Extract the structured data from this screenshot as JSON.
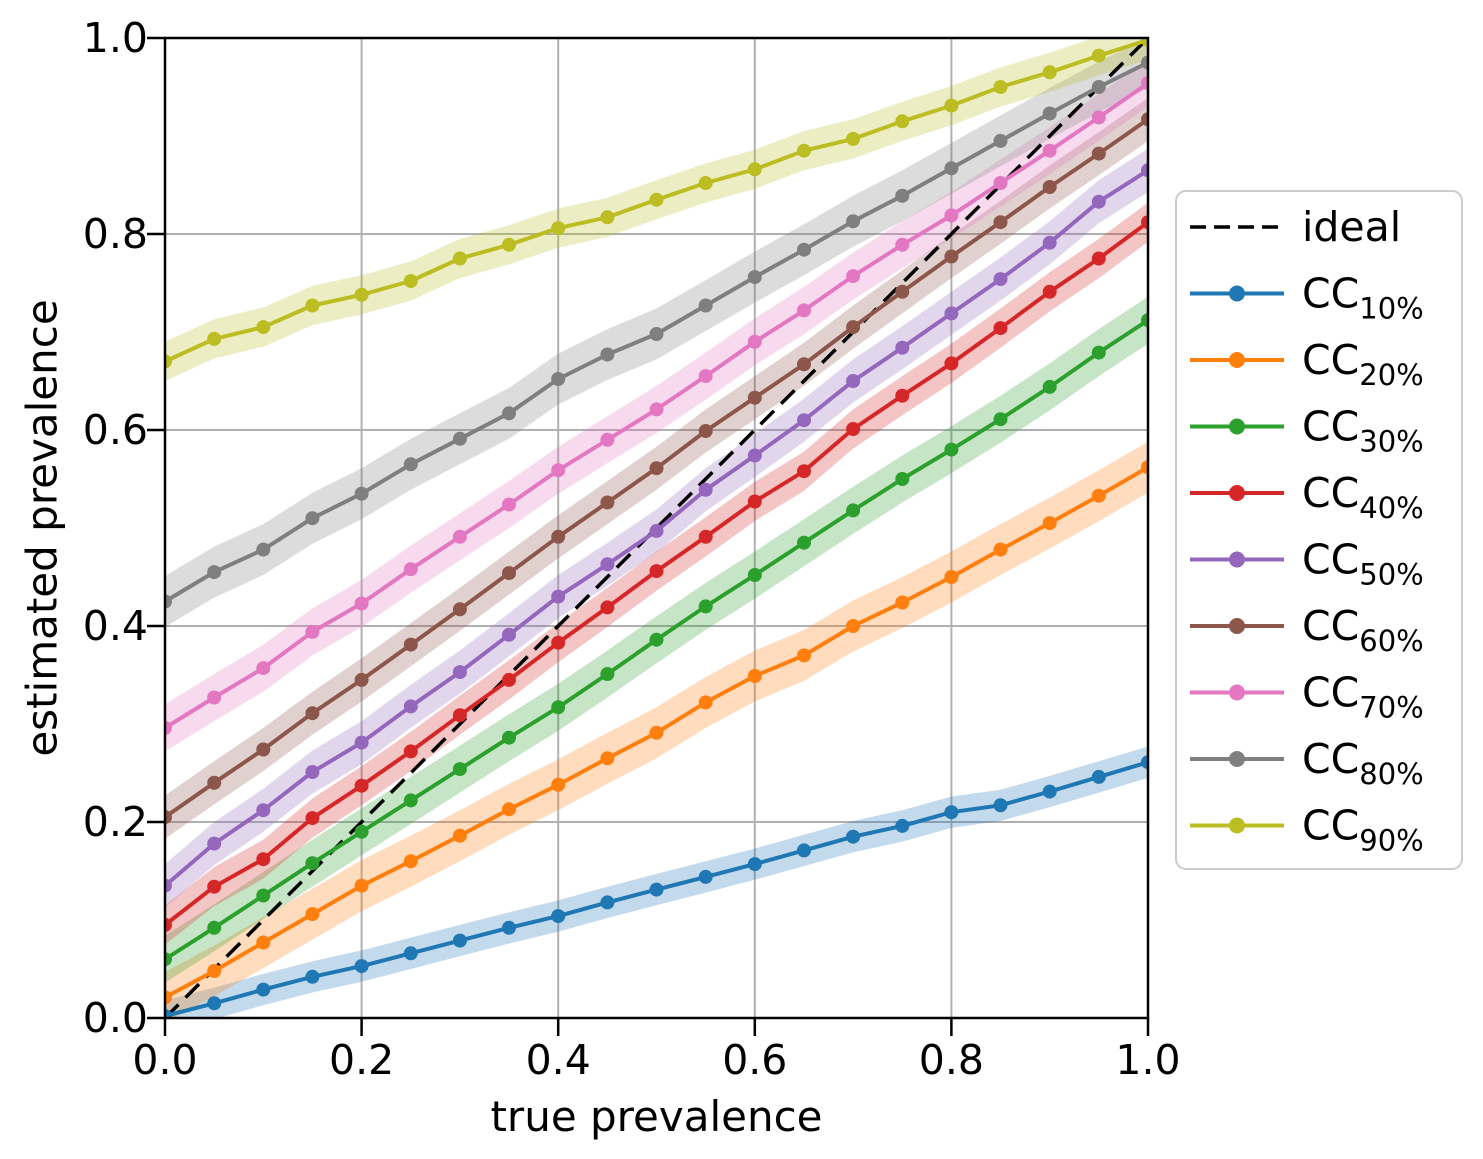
{
  "chart_data": {
    "type": "line",
    "xlabel": "true prevalence",
    "ylabel": "estimated prevalence",
    "xlim": [
      0.0,
      1.0
    ],
    "ylim": [
      0.0,
      1.0
    ],
    "grid": true,
    "legend_position": "outside-right",
    "x_ticks": {
      "positions": [
        0.0,
        0.2,
        0.4,
        0.6,
        0.8,
        1.0
      ],
      "labels": [
        "0.0",
        "0.2",
        "0.4",
        "0.6",
        "0.8",
        "1.0"
      ]
    },
    "y_ticks": {
      "positions": [
        0.0,
        0.2,
        0.4,
        0.6,
        0.8,
        1.0
      ],
      "labels": [
        "0.0",
        "0.2",
        "0.4",
        "0.6",
        "0.8",
        "1.0"
      ]
    },
    "colors": {
      "grid": "#b0b0b0",
      "spine": "#000000",
      "legend_border": "#cccccc",
      "ideal": "#000000"
    },
    "x": [
      0.0,
      0.05,
      0.1,
      0.15,
      0.2,
      0.25,
      0.3,
      0.35,
      0.4,
      0.45,
      0.5,
      0.55,
      0.6,
      0.65,
      0.7,
      0.75,
      0.8,
      0.85,
      0.9,
      0.95,
      1.0
    ],
    "ideal": {
      "id": "ideal",
      "label": "ideal",
      "style": "dashed",
      "color": "#000000",
      "points": [
        [
          0.0,
          0.0
        ],
        [
          1.0,
          1.0
        ]
      ]
    },
    "series": [
      {
        "id": "cc-10",
        "label_main": "CC",
        "label_sub": "10%",
        "color": "#1f77b4",
        "band": 0.016,
        "values": [
          0.002,
          0.015,
          0.029,
          0.042,
          0.053,
          0.066,
          0.079,
          0.092,
          0.104,
          0.118,
          0.131,
          0.144,
          0.157,
          0.171,
          0.185,
          0.196,
          0.21,
          0.217,
          0.231,
          0.246,
          0.261
        ]
      },
      {
        "id": "cc-20",
        "label_main": "CC",
        "label_sub": "20%",
        "color": "#ff7f0e",
        "band": 0.026,
        "values": [
          0.021,
          0.048,
          0.077,
          0.106,
          0.135,
          0.16,
          0.186,
          0.213,
          0.238,
          0.265,
          0.291,
          0.322,
          0.349,
          0.37,
          0.4,
          0.424,
          0.45,
          0.478,
          0.505,
          0.533,
          0.562
        ]
      },
      {
        "id": "cc-30",
        "label_main": "CC",
        "label_sub": "30%",
        "color": "#2ca02c",
        "band": 0.024,
        "values": [
          0.06,
          0.092,
          0.125,
          0.158,
          0.19,
          0.222,
          0.254,
          0.286,
          0.317,
          0.351,
          0.386,
          0.42,
          0.452,
          0.485,
          0.518,
          0.55,
          0.58,
          0.611,
          0.644,
          0.679,
          0.712
        ]
      },
      {
        "id": "cc-40",
        "label_main": "CC",
        "label_sub": "40%",
        "color": "#d62728",
        "band": 0.02,
        "values": [
          0.095,
          0.134,
          0.162,
          0.204,
          0.237,
          0.272,
          0.309,
          0.345,
          0.383,
          0.419,
          0.456,
          0.491,
          0.527,
          0.558,
          0.601,
          0.635,
          0.668,
          0.704,
          0.741,
          0.775,
          0.812
        ]
      },
      {
        "id": "cc-50",
        "label_main": "CC",
        "label_sub": "50%",
        "color": "#9467bd",
        "band": 0.022,
        "values": [
          0.135,
          0.178,
          0.212,
          0.251,
          0.281,
          0.318,
          0.353,
          0.391,
          0.43,
          0.463,
          0.497,
          0.539,
          0.574,
          0.61,
          0.65,
          0.684,
          0.719,
          0.754,
          0.791,
          0.833,
          0.865
        ]
      },
      {
        "id": "cc-60",
        "label_main": "CC",
        "label_sub": "60%",
        "color": "#8c564b",
        "band": 0.022,
        "values": [
          0.205,
          0.24,
          0.274,
          0.311,
          0.345,
          0.381,
          0.417,
          0.454,
          0.491,
          0.526,
          0.561,
          0.599,
          0.633,
          0.667,
          0.705,
          0.741,
          0.777,
          0.812,
          0.848,
          0.882,
          0.917
        ]
      },
      {
        "id": "cc-70",
        "label_main": "CC",
        "label_sub": "70%",
        "color": "#e377c2",
        "band": 0.024,
        "values": [
          0.296,
          0.327,
          0.357,
          0.394,
          0.423,
          0.458,
          0.491,
          0.524,
          0.559,
          0.59,
          0.621,
          0.655,
          0.69,
          0.722,
          0.757,
          0.789,
          0.819,
          0.852,
          0.885,
          0.919,
          0.954
        ]
      },
      {
        "id": "cc-80",
        "label_main": "CC",
        "label_sub": "80%",
        "color": "#7f7f7f",
        "band": 0.026,
        "values": [
          0.425,
          0.455,
          0.478,
          0.51,
          0.535,
          0.565,
          0.591,
          0.617,
          0.652,
          0.677,
          0.698,
          0.727,
          0.756,
          0.784,
          0.813,
          0.839,
          0.867,
          0.895,
          0.923,
          0.95,
          0.975
        ]
      },
      {
        "id": "cc-90",
        "label_main": "CC",
        "label_sub": "90%",
        "color": "#bcbd22",
        "band": 0.02,
        "values": [
          0.67,
          0.693,
          0.705,
          0.727,
          0.738,
          0.752,
          0.775,
          0.789,
          0.806,
          0.817,
          0.835,
          0.852,
          0.866,
          0.885,
          0.897,
          0.915,
          0.931,
          0.95,
          0.965,
          0.982,
          0.998
        ]
      }
    ]
  }
}
